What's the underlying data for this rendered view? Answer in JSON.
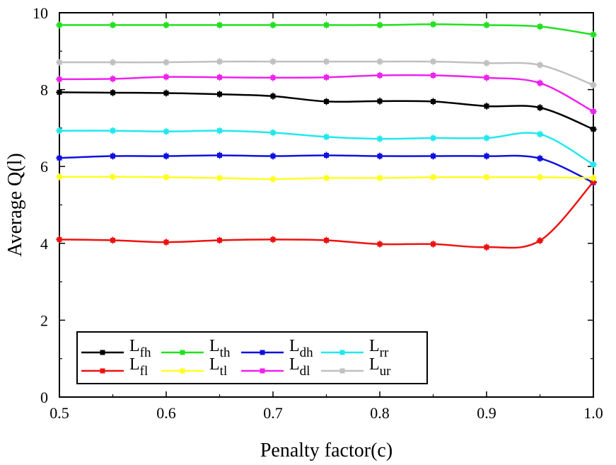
{
  "chart_data": {
    "type": "line",
    "title": "",
    "xlabel": "Penalty factor(c)",
    "ylabel": "Average Q(l)",
    "xlim": [
      0.5,
      1.0
    ],
    "ylim": [
      0,
      10
    ],
    "xticks": [
      "0.5",
      "0.6",
      "0.7",
      "0.8",
      "0.9",
      "1.0"
    ],
    "yticks": [
      "0",
      "2",
      "4",
      "6",
      "8",
      "10"
    ],
    "grid": false,
    "legend_position": "bottom-left",
    "x": [
      0.5,
      0.55,
      0.6,
      0.65,
      0.7,
      0.75,
      0.8,
      0.85,
      0.9,
      0.95,
      1.0
    ],
    "series": [
      {
        "name": "L",
        "sub": "fh",
        "color": "#000000",
        "values": [
          7.93,
          7.92,
          7.91,
          7.88,
          7.83,
          7.69,
          7.7,
          7.69,
          7.57,
          7.53,
          6.97
        ]
      },
      {
        "name": "L",
        "sub": "th",
        "color": "#22e022",
        "values": [
          9.68,
          9.68,
          9.68,
          9.68,
          9.68,
          9.68,
          9.68,
          9.7,
          9.68,
          9.64,
          9.43
        ]
      },
      {
        "name": "L",
        "sub": "dh",
        "color": "#1010e0",
        "values": [
          6.22,
          6.27,
          6.27,
          6.29,
          6.27,
          6.29,
          6.27,
          6.27,
          6.27,
          6.21,
          5.58
        ]
      },
      {
        "name": "L",
        "sub": "rr",
        "color": "#22e8ee",
        "values": [
          6.93,
          6.93,
          6.91,
          6.93,
          6.88,
          6.77,
          6.72,
          6.74,
          6.74,
          6.84,
          6.05
        ]
      },
      {
        "name": "L",
        "sub": "fl",
        "color": "#ee1111",
        "values": [
          4.1,
          4.08,
          4.03,
          4.08,
          4.1,
          4.08,
          3.98,
          3.98,
          3.9,
          4.07,
          5.6
        ]
      },
      {
        "name": "L",
        "sub": "tl",
        "color": "#ffff22",
        "values": [
          5.73,
          5.73,
          5.72,
          5.7,
          5.67,
          5.7,
          5.7,
          5.72,
          5.72,
          5.72,
          5.7
        ]
      },
      {
        "name": "L",
        "sub": "dl",
        "color": "#ee22ee",
        "values": [
          8.27,
          8.28,
          8.33,
          8.32,
          8.31,
          8.32,
          8.37,
          8.37,
          8.31,
          8.17,
          7.43
        ]
      },
      {
        "name": "L",
        "sub": "ur",
        "color": "#c0c0c0",
        "values": [
          8.71,
          8.71,
          8.71,
          8.73,
          8.73,
          8.73,
          8.73,
          8.73,
          8.69,
          8.64,
          8.12
        ]
      }
    ]
  }
}
